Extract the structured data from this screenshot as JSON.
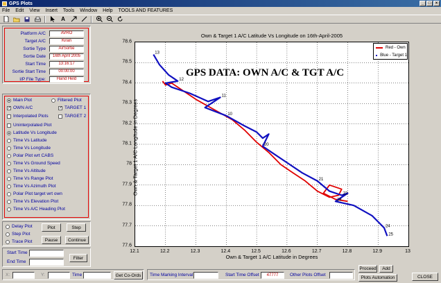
{
  "window": {
    "title": "GPS Plots",
    "min": "_",
    "max": "□",
    "close": "×"
  },
  "menu": [
    "File",
    "Edit",
    "View",
    "Insert",
    "Tools",
    "Window",
    "Help",
    "TOOLS AND FEATURES"
  ],
  "info": [
    {
      "label": "Platform A/C",
      "value": "AVRO"
    },
    {
      "label": "Target A/C",
      "value": "Kiran"
    },
    {
      "label": "Sortie Type",
      "value": "AirSortie"
    },
    {
      "label": "Sortie Date",
      "value": "16th April 2005"
    },
    {
      "label": "Start Time",
      "value": "13:16:17"
    },
    {
      "label": "Sortie Start Time",
      "value": "00:00:00"
    },
    {
      "label": "I/P File Type:",
      "value": "Hand Held"
    }
  ],
  "plot_options": {
    "main_plot": "Main Plot",
    "filtered_plot": "Filtered Plot",
    "own_ac": "OWN A/C",
    "target1": "TARGET 1",
    "interpolated": "Interpolated Plots",
    "target2": "TARGET 2",
    "uninterpolated": "Uninterpolated Plot",
    "plots": [
      "Latitude Vs Longitude",
      "Time Vs Latitude",
      "Time Vs Longitude",
      "Polar Plot wrt CABS",
      "Time Vs Ground Speed",
      "Time Vs Altitude",
      "Time Vs Range Plot",
      "Time Vs Azimuth Plot",
      "Polar Plot target wrt own",
      "Time Vs Elevation Plot",
      "Time Vs A/C Heading Plot"
    ]
  },
  "controls": {
    "delay_plot": "Delay Plot",
    "step_plot": "Step Plot",
    "trace_plot": "Trace Plot",
    "plot": "Plot",
    "step": "Step",
    "pause": "Pause",
    "continue": "Continue",
    "start_time": "Start Time",
    "end_time": "End Time",
    "filter": "Filter"
  },
  "bottom": {
    "x_label": "X:",
    "y_label": "Y:",
    "time_label": "Time",
    "get_coords": "Get Co-Ords",
    "time_marking": "Time Marking Interval",
    "start_offset": "Start Time Offset",
    "start_offset_value": "47777",
    "other_offset": "Other Plots Offset",
    "proceed": "Proceed",
    "add": "Add",
    "automation": "Plots Automation",
    "close": "CLOSE"
  },
  "chart_data": {
    "type": "line",
    "title": "Own & Target 1 A/C Latitude Vs Longitude on 16th-April-2005",
    "overlay_text": "GPS DATA:  OWN A/C & TGT A/C",
    "xlabel": "Own & Target 1 A/C Latitude in Degrees",
    "ylabel": "Own & Target 1 A/C Longitude in Degrees",
    "xlim": [
      12.1,
      13.0
    ],
    "ylim": [
      77.6,
      78.6
    ],
    "xticks": [
      "12.1",
      "12.2",
      "12.3",
      "12.4",
      "12.5",
      "12.6",
      "12.7",
      "12.8",
      "12.9",
      "13"
    ],
    "yticks": [
      "78.6",
      "78.5",
      "78.4",
      "78.3",
      "78.2",
      "78.1",
      "78",
      "77.9",
      "77.8",
      "77.7",
      "77.6"
    ],
    "grid": true,
    "legend_position": "top-right",
    "series": [
      {
        "name": "Red - Own",
        "color": "#e00000",
        "x": [
          12.19,
          12.2,
          12.22,
          12.25,
          12.3,
          12.36,
          12.42,
          12.46,
          12.5,
          12.54,
          12.58,
          12.62,
          12.66,
          12.7,
          12.74,
          12.77,
          12.78,
          12.74,
          12.72,
          12.76,
          12.8
        ],
        "y": [
          78.41,
          78.39,
          78.4,
          78.37,
          78.32,
          78.27,
          78.22,
          78.17,
          78.11,
          78.06,
          78.0,
          77.96,
          77.92,
          77.87,
          77.84,
          77.85,
          77.88,
          77.9,
          77.86,
          77.83,
          77.82
        ]
      },
      {
        "name": "Blue - Target 1",
        "color": "#1010c0",
        "x": [
          12.16,
          12.18,
          12.21,
          12.24,
          12.2,
          12.22,
          12.28,
          12.34,
          12.38,
          12.33,
          12.4,
          12.46,
          12.5,
          12.52,
          12.54,
          12.52,
          12.55,
          12.6,
          12.65,
          12.7,
          12.74,
          12.78,
          12.8,
          12.76,
          12.82,
          12.88,
          12.92,
          12.93
        ],
        "y": [
          78.54,
          78.49,
          78.44,
          78.41,
          78.4,
          78.38,
          78.35,
          78.31,
          78.33,
          78.28,
          78.24,
          78.19,
          78.16,
          78.13,
          78.15,
          78.09,
          78.06,
          78.01,
          77.96,
          77.92,
          77.87,
          77.85,
          77.86,
          77.82,
          77.8,
          77.75,
          77.69,
          77.65
        ]
      }
    ],
    "time_labels": [
      "13",
      "12",
      "11",
      "10",
      "20",
      "21",
      "22",
      "23",
      "24",
      "25"
    ]
  }
}
